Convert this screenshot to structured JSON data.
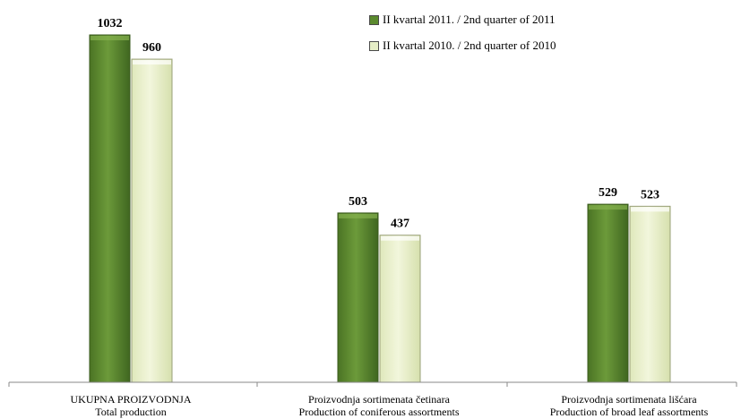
{
  "chart_data": {
    "type": "bar",
    "categories": [
      [
        "UKUPNA PROIZVODNJA",
        "Total production"
      ],
      [
        "Proizvodnja sortimenata četinara",
        "Production of coniferous assortments"
      ],
      [
        "Proizvodnja sortimenata lišćara",
        "Production of broad leaf assortments"
      ]
    ],
    "series": [
      {
        "name": "II kvartal 2011. / 2nd quarter of 2011",
        "values": [
          1032,
          503,
          529
        ],
        "color": "#5b8a2e"
      },
      {
        "name": "II kvartal 2010. / 2nd quarter of 2010",
        "values": [
          960,
          437,
          523
        ],
        "color": "#e6eec6"
      }
    ],
    "ylim": [
      0,
      1100
    ],
    "grid": false,
    "legend_position": "top-right",
    "title": "",
    "xlabel": "",
    "ylabel": ""
  }
}
